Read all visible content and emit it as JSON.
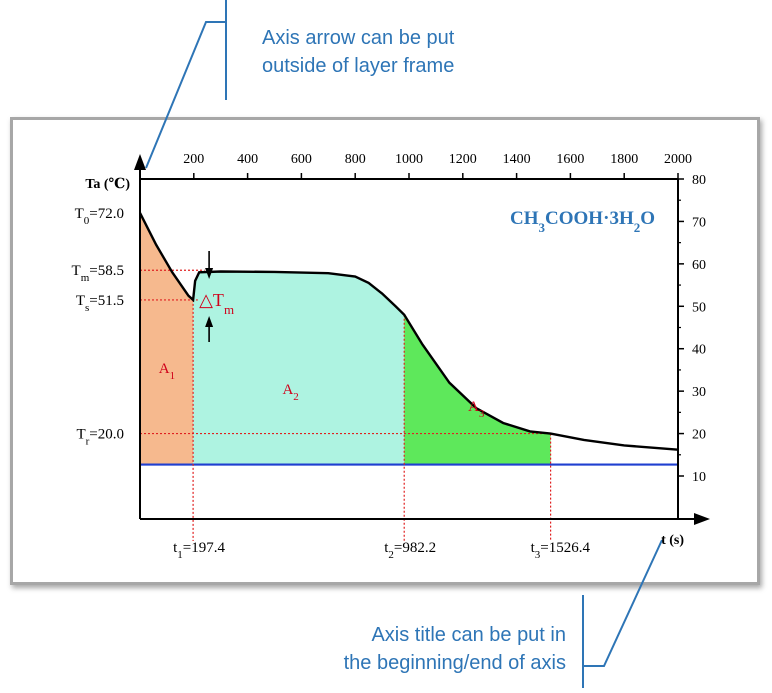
{
  "callouts": {
    "top": [
      "Axis arrow can be put",
      "outside of layer frame"
    ],
    "bottom": [
      "Axis title can be put in",
      "the beginning/end of axis"
    ]
  },
  "colors": {
    "callout": "#2e75b6",
    "area_A1": "#f6b98e",
    "area_A2": "#aef3e1",
    "area_A3": "#5ee85b",
    "curve": "#000000",
    "baseline": "#1f3fd0",
    "guides": "#e02020",
    "annotation": "#d0021b",
    "compound": "#2e75b6"
  },
  "chart_data": {
    "type": "line",
    "compound": "CH3COOH·3H2O",
    "x_axis_title": "t (s)",
    "y_axis_title": "Ta (℃)",
    "xlim": [
      0,
      2000
    ],
    "ylim": [
      0,
      80
    ],
    "x_tick_labels_top": [
      "200",
      "400",
      "600",
      "800",
      "1000",
      "1200",
      "1400",
      "1600",
      "1800",
      "2000"
    ],
    "y_tick_labels_right": [
      "10",
      "20",
      "30",
      "40",
      "50",
      "60",
      "70",
      "80"
    ],
    "grid": false,
    "series": [
      {
        "x": [
          0,
          60,
          120,
          180,
          197.4,
          205,
          220,
          300,
          500,
          700,
          800,
          850,
          900,
          950,
          982.2,
          1050,
          1150,
          1250,
          1350,
          1450,
          1526.4,
          1650,
          1800,
          2000
        ],
        "y": [
          72.0,
          64.5,
          58.0,
          52.5,
          51.5,
          56.0,
          58.0,
          58.2,
          58.1,
          57.8,
          57.0,
          55.5,
          53.0,
          50.0,
          48.0,
          41.0,
          32.0,
          26.0,
          22.5,
          20.5,
          20.0,
          18.5,
          17.2,
          16.2
        ]
      }
    ],
    "baseline_temperature": 12.7,
    "levels": [
      {
        "label": "T0=72.0",
        "value": 72.0
      },
      {
        "label": "Tm=58.5",
        "value": 58.5
      },
      {
        "label": "Ts=51.5",
        "value": 51.5
      },
      {
        "label": "Tr=20.0",
        "value": 20.0
      }
    ],
    "times": [
      {
        "label": "t1=197.4",
        "value": 197.4
      },
      {
        "label": "t2=982.2",
        "value": 982.2
      },
      {
        "label": "t3=1526.4",
        "value": 1526.4
      }
    ],
    "areas": [
      {
        "label": "A1",
        "from": 0,
        "to": 197.4
      },
      {
        "label": "A2",
        "from": 197.4,
        "to": 982.2
      },
      {
        "label": "A3",
        "from": 982.2,
        "to": 1526.4
      }
    ],
    "annotation": "△Tm"
  }
}
